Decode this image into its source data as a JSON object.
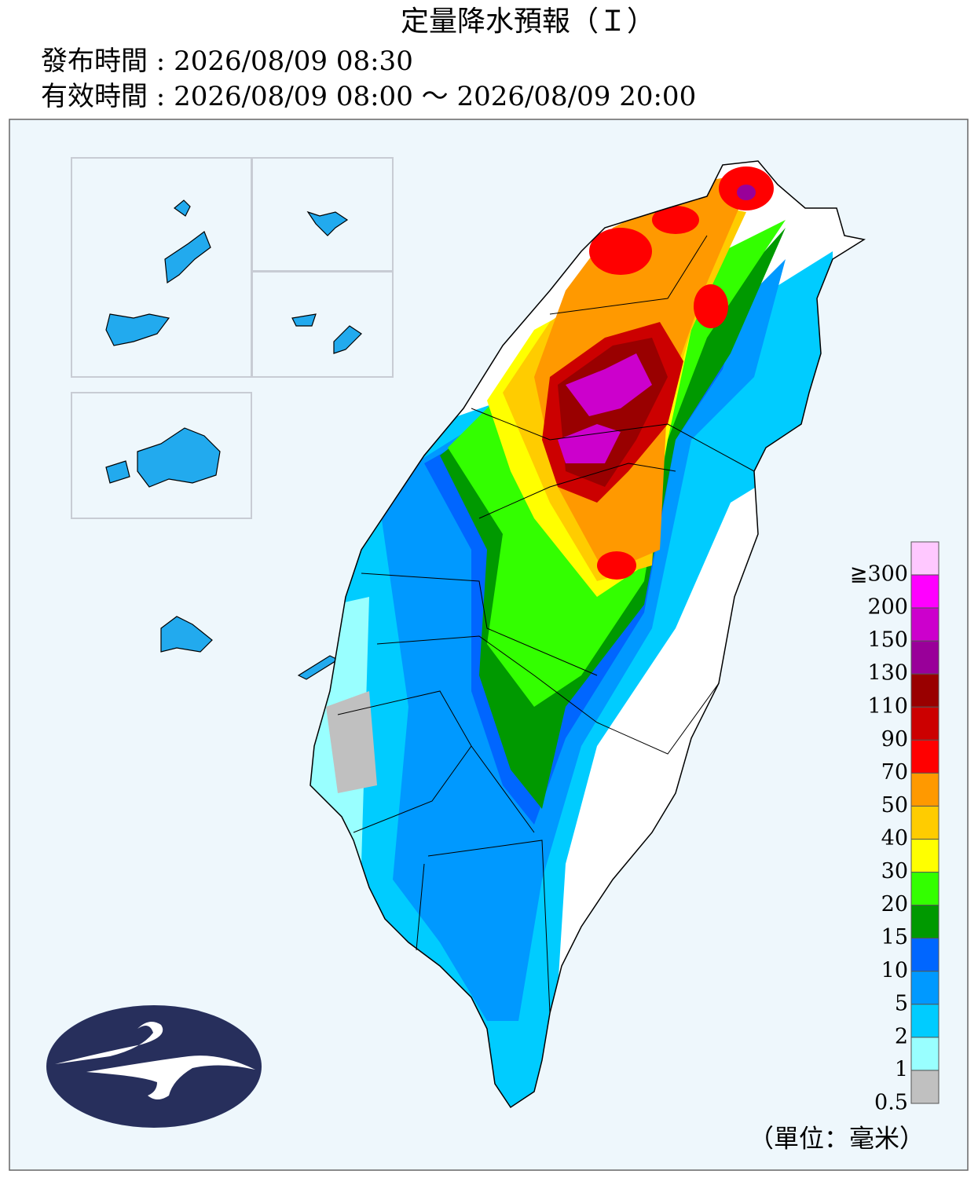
{
  "header": {
    "title": "定量降水預報（Ｉ）",
    "issued": "發布時間 : 2026/08/09 08:30",
    "valid": "有效時間 : 2026/08/09 08:00 ～ 2026/08/09 20:00"
  },
  "legend": {
    "unit": "（單位：毫米）",
    "items": [
      {
        "label": "≧300",
        "color": "#ffc8ff"
      },
      {
        "label": "200",
        "color": "#ff00ff"
      },
      {
        "label": "150",
        "color": "#cc00cc"
      },
      {
        "label": "130",
        "color": "#990099"
      },
      {
        "label": "110",
        "color": "#990000"
      },
      {
        "label": "90",
        "color": "#cc0000"
      },
      {
        "label": "70",
        "color": "#ff0000"
      },
      {
        "label": "50",
        "color": "#ff9900"
      },
      {
        "label": "40",
        "color": "#ffcc00"
      },
      {
        "label": "30",
        "color": "#ffff00"
      },
      {
        "label": "20",
        "color": "#33ff00"
      },
      {
        "label": "15",
        "color": "#009900"
      },
      {
        "label": "10",
        "color": "#0066ff"
      },
      {
        "label": "5",
        "color": "#0099ff"
      },
      {
        "label": "2",
        "color": "#00ccff"
      },
      {
        "label": "1",
        "color": "#99ffff"
      },
      {
        "label": "0.5",
        "color": "#c0c0c0"
      }
    ]
  }
}
